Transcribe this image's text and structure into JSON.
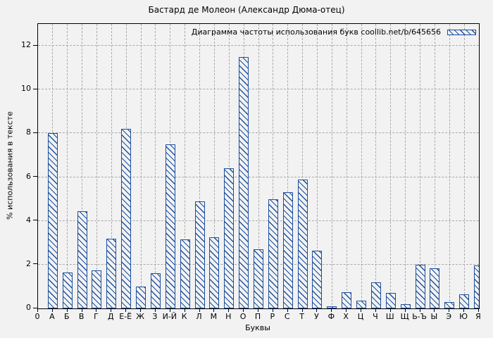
{
  "colors": {
    "bar": "#1b4f9e",
    "grid": "#a9a9a9",
    "background": "#f2f2f2",
    "axis": "#000000"
  },
  "chart_data": {
    "type": "bar",
    "title": "Бастард де Молеон (Александр Дюма-отец)",
    "legend_label": "Диаграмма частоты использования букв coollib.net/b/645656",
    "legend_position": "top-right",
    "xlabel": "Буквы",
    "ylabel": "% использования в тексте",
    "origin_label": "0",
    "categories": [
      "А",
      "Б",
      "В",
      "Г",
      "Д",
      "Е-Ё",
      "Ж",
      "З",
      "И-Й",
      "К",
      "Л",
      "М",
      "Н",
      "О",
      "П",
      "Р",
      "С",
      "Т",
      "У",
      "Ф",
      "Х",
      "Ц",
      "Ч",
      "Ш",
      "Щ",
      "Ь-Ъ",
      "Ы",
      "Э",
      "Ю",
      "Я"
    ],
    "values": [
      8.0,
      1.65,
      4.45,
      1.75,
      3.2,
      8.2,
      1.0,
      1.6,
      7.5,
      3.15,
      4.9,
      3.25,
      6.4,
      11.5,
      2.7,
      5.0,
      5.3,
      5.9,
      2.65,
      0.1,
      0.75,
      0.35,
      1.2,
      0.7,
      0.2,
      2.0,
      1.85,
      0.3,
      0.65,
      1.95
    ],
    "ylim": [
      0,
      13
    ],
    "yticks": [
      0,
      2,
      4,
      6,
      8,
      10,
      12
    ],
    "grid": true,
    "hatch": "diagonal"
  }
}
